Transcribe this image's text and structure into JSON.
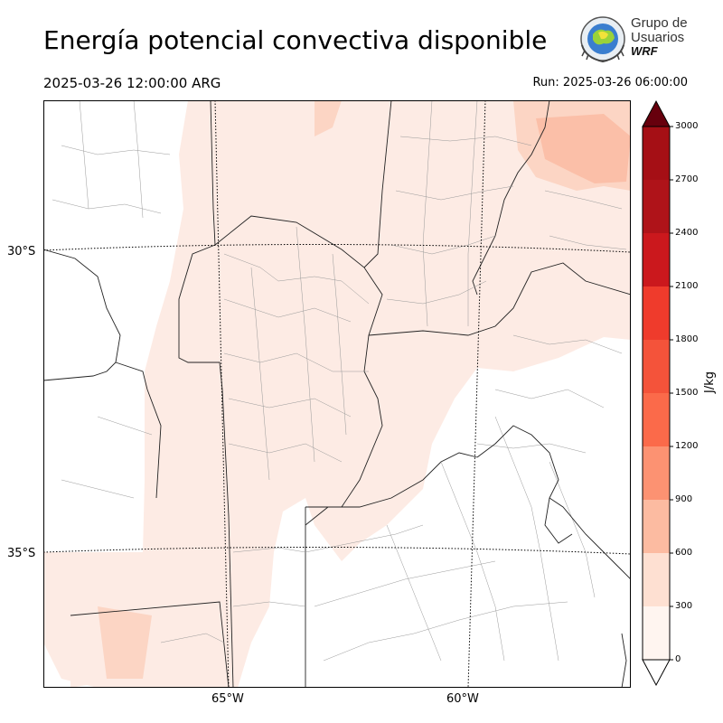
{
  "header": {
    "title": "Energía potencial convectiva disponible",
    "valid_time": "2025-03-26 12:00:00 ARG",
    "run_time": "Run: 2025-03-26 06:00:00"
  },
  "logo": {
    "line1": "Grupo de",
    "line2": "Usuarios",
    "line3": "WRF"
  },
  "map": {
    "latitude_labels": [
      "30°S",
      "35°S"
    ],
    "longitude_labels": [
      "65°W",
      "60°W"
    ]
  },
  "colorbar": {
    "units": "J/kg",
    "ticks": [
      "0",
      "300",
      "600",
      "900",
      "1200",
      "1500",
      "1800",
      "2100",
      "2400",
      "2700",
      "3000"
    ],
    "colors": [
      "#fff5f0",
      "#fee0d2",
      "#fcbba1",
      "#fc9272",
      "#fb6a4a",
      "#f4533a",
      "#ef3b2c",
      "#cb181d",
      "#af1319",
      "#a50f15",
      "#7a0510"
    ],
    "extend_top_color": "#67000d"
  }
}
